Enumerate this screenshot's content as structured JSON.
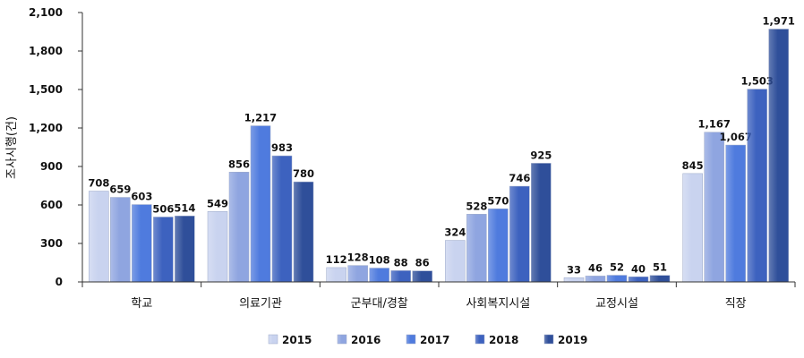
{
  "chart_data": {
    "type": "bar",
    "ylabel": "조사시행(건)",
    "ylim": [
      0,
      2100
    ],
    "yticks": [
      0,
      300,
      600,
      900,
      1200,
      1500,
      1800,
      2100
    ],
    "ytick_labels": [
      "0",
      "300",
      "600",
      "900",
      "1,200",
      "1,500",
      "1,800",
      "2,100"
    ],
    "categories": [
      "학교",
      "의료기관",
      "군부대/경찰",
      "사회복지시설",
      "교정시설",
      "직장"
    ],
    "series": [
      {
        "name": "2015",
        "color": "#c9d3ef",
        "values": [
          708,
          549,
          112,
          324,
          33,
          845
        ],
        "labels": [
          "708",
          "549",
          "112",
          "324",
          "33",
          "845"
        ]
      },
      {
        "name": "2016",
        "color": "#8fa5e0",
        "values": [
          659,
          856,
          128,
          528,
          46,
          1167
        ],
        "labels": [
          "659",
          "856",
          "128",
          "528",
          "46",
          "1,167"
        ]
      },
      {
        "name": "2017",
        "color": "#4f7bde",
        "values": [
          603,
          1217,
          108,
          570,
          52,
          1067
        ],
        "labels": [
          "603",
          "1,217",
          "108",
          "570",
          "52",
          "1,067"
        ]
      },
      {
        "name": "2018",
        "color": "#3d62bf",
        "values": [
          506,
          983,
          88,
          746,
          40,
          1503
        ],
        "labels": [
          "506",
          "983",
          "88",
          "746",
          "40",
          "1,503"
        ]
      },
      {
        "name": "2019",
        "color": "#2f4f9a",
        "values": [
          514,
          780,
          86,
          925,
          51,
          1971
        ],
        "labels": [
          "514",
          "780",
          "86",
          "925",
          "51",
          "1,971"
        ]
      }
    ],
    "grid": false,
    "legend": "bottom"
  }
}
